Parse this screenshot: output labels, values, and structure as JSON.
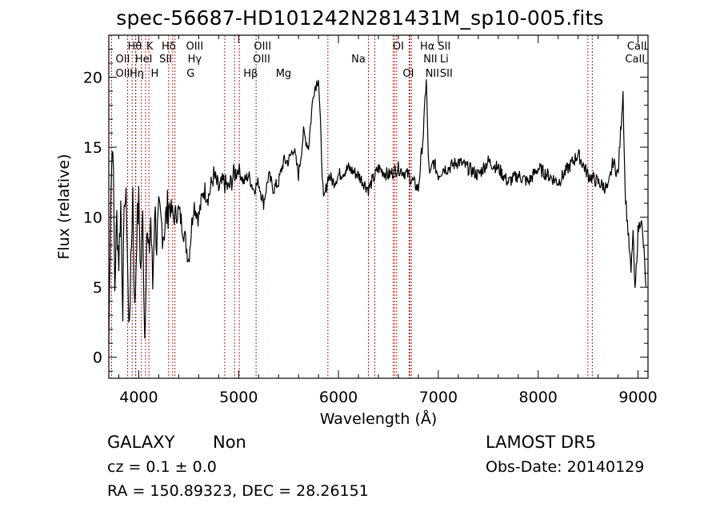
{
  "title": "spec-56687-HD101242N281431M_sp10-005.fits",
  "footer": {
    "class_label": "GALAXY",
    "subclass_label": "Non",
    "redshift_text": "cz = 0.1 ± 0.0",
    "coords_text": "RA = 150.89323, DEC =  28.26151",
    "survey_label": "LAMOST DR5",
    "obs_date_text": "Obs-Date: 20140129"
  },
  "chart_data": {
    "type": "line",
    "xlabel": "Wavelength (Å)",
    "ylabel": "Flux (relative)",
    "xlim": [
      3700,
      9100
    ],
    "ylim": [
      -1.5,
      23
    ],
    "x_ticks": [
      4000,
      5000,
      6000,
      7000,
      8000,
      9000
    ],
    "y_ticks": [
      0,
      5,
      10,
      15,
      20
    ],
    "line_color": "#000000",
    "marker_color": "#b22222",
    "series": [
      {
        "x": [
          3700,
          3720,
          3740,
          3760,
          3780,
          3800,
          3820,
          3840,
          3860,
          3880,
          3900,
          3920,
          3940,
          3960,
          3980,
          4000,
          4020,
          4040,
          4060,
          4080,
          4100,
          4120,
          4140,
          4160,
          4180,
          4200,
          4250,
          4300,
          4350,
          4400,
          4450,
          4500,
          4550,
          4600,
          4650,
          4700,
          4750,
          4800,
          4850,
          4900,
          4950,
          5000,
          5050,
          5100,
          5150,
          5200,
          5250,
          5300,
          5350,
          5400,
          5450,
          5500,
          5550,
          5600,
          5650,
          5700,
          5750,
          5800,
          5850,
          5900,
          5950,
          6000,
          6100,
          6200,
          6300,
          6400,
          6500,
          6600,
          6700,
          6800,
          6850,
          6880,
          6900,
          6920,
          6950,
          7000,
          7050,
          7100,
          7200,
          7300,
          7400,
          7500,
          7600,
          7700,
          7800,
          7900,
          8000,
          8100,
          8200,
          8300,
          8400,
          8500,
          8600,
          8700,
          8750,
          8800,
          8850,
          8870,
          8900,
          8930,
          8950,
          8970,
          9000,
          9030,
          9060,
          9080
        ],
        "y": [
          1,
          12,
          16,
          5,
          10,
          7,
          11,
          4,
          12,
          10,
          2,
          6,
          12,
          3,
          9,
          11,
          6,
          10,
          1.5,
          9,
          7,
          10,
          5,
          11,
          8,
          10,
          9,
          11,
          10,
          10.5,
          9,
          7,
          11,
          10,
          12,
          11.5,
          13,
          12,
          12.5,
          12,
          13,
          13.5,
          12.5,
          13,
          12,
          12.5,
          11,
          13,
          12,
          12.5,
          14,
          14,
          15,
          13,
          16,
          15,
          19,
          20,
          11,
          13,
          12.5,
          13,
          13.5,
          13,
          12,
          13.5,
          13,
          13.5,
          13,
          12,
          16,
          20,
          14,
          13,
          14,
          13,
          13.5,
          13.5,
          14,
          13.5,
          13,
          14,
          13.5,
          12.5,
          13,
          12.5,
          13.5,
          13,
          12.5,
          13.5,
          14.5,
          13,
          12.5,
          12,
          14,
          13,
          19,
          12,
          9,
          6,
          9,
          4.5,
          9,
          10,
          7.5,
          5
        ]
      }
    ],
    "line_markers": [
      {
        "wavelength": 3727,
        "labels": [
          "OII"
        ]
      },
      {
        "wavelength": 3889,
        "labels": [
          "Hη"
        ]
      },
      {
        "wavelength": 3934,
        "labels": [
          "K"
        ]
      },
      {
        "wavelength": 3968,
        "labels": [
          "H"
        ]
      },
      {
        "wavelength": 3970,
        "labels": [
          "Hε"
        ]
      },
      {
        "wavelength": 4026,
        "labels": [
          "HeI"
        ]
      },
      {
        "wavelength": 4068,
        "labels": [
          "SII"
        ]
      },
      {
        "wavelength": 4102,
        "labels": [
          "Hδ"
        ]
      },
      {
        "wavelength": 4300,
        "labels": [
          "G"
        ]
      },
      {
        "wavelength": 4340,
        "labels": [
          "Hγ"
        ]
      },
      {
        "wavelength": 4363,
        "labels": [
          "OIII"
        ]
      },
      {
        "wavelength": 4861,
        "labels": [
          "Hβ"
        ]
      },
      {
        "wavelength": 4959,
        "labels": [
          "OIII"
        ]
      },
      {
        "wavelength": 5007,
        "labels": [
          "OIII"
        ]
      },
      {
        "wavelength": 5175,
        "labels": [
          "Mg"
        ]
      },
      {
        "wavelength": 5894,
        "labels": [
          "Na"
        ]
      },
      {
        "wavelength": 6300,
        "labels": [
          "OI"
        ]
      },
      {
        "wavelength": 6364,
        "labels": [
          "OI"
        ]
      },
      {
        "wavelength": 6548,
        "labels": [
          "NII"
        ]
      },
      {
        "wavelength": 6563,
        "labels": [
          "Hα"
        ]
      },
      {
        "wavelength": 6583,
        "labels": [
          "NII"
        ]
      },
      {
        "wavelength": 6708,
        "labels": [
          "Li"
        ]
      },
      {
        "wavelength": 6716,
        "labels": [
          "SII"
        ]
      },
      {
        "wavelength": 6731,
        "labels": [
          "SII"
        ]
      },
      {
        "wavelength": 8498,
        "labels": [
          "CaII"
        ]
      },
      {
        "wavelength": 8542,
        "labels": [
          "CaII"
        ]
      }
    ],
    "marker_label_rows": [
      {
        "text": "Hθ",
        "at": 3960,
        "row": 0
      },
      {
        "text": "K",
        "at": 4110,
        "row": 0
      },
      {
        "text": "Hδ",
        "at": 4300,
        "row": 0
      },
      {
        "text": "OIII",
        "at": 4560,
        "row": 0
      },
      {
        "text": "OIII",
        "at": 5240,
        "row": 0
      },
      {
        "text": "OI",
        "at": 6600,
        "row": 0
      },
      {
        "text": "Hα",
        "at": 6890,
        "row": 0
      },
      {
        "text": "SII",
        "at": 7060,
        "row": 0
      },
      {
        "text": "CaII",
        "at": 8990,
        "row": 0
      },
      {
        "text": "OII",
        "at": 3840,
        "row": 1
      },
      {
        "text": "HeI",
        "at": 4050,
        "row": 1
      },
      {
        "text": "SII",
        "at": 4270,
        "row": 1
      },
      {
        "text": "Hγ",
        "at": 4560,
        "row": 1
      },
      {
        "text": "OIII",
        "at": 5230,
        "row": 1
      },
      {
        "text": "Na",
        "at": 6200,
        "row": 1
      },
      {
        "text": "NII",
        "at": 6920,
        "row": 1
      },
      {
        "text": "Li",
        "at": 7060,
        "row": 1
      },
      {
        "text": "CaII",
        "at": 8970,
        "row": 1
      },
      {
        "text": "OII",
        "at": 3840,
        "row": 2
      },
      {
        "text": "Hη",
        "at": 3980,
        "row": 2
      },
      {
        "text": "H",
        "at": 4160,
        "row": 2
      },
      {
        "text": "G",
        "at": 4520,
        "row": 2
      },
      {
        "text": "Hβ",
        "at": 5120,
        "row": 2
      },
      {
        "text": "Mg",
        "at": 5450,
        "row": 2
      },
      {
        "text": "OI",
        "at": 6700,
        "row": 2
      },
      {
        "text": "NII",
        "at": 6940,
        "row": 2
      },
      {
        "text": "SII",
        "at": 7080,
        "row": 2
      }
    ]
  }
}
